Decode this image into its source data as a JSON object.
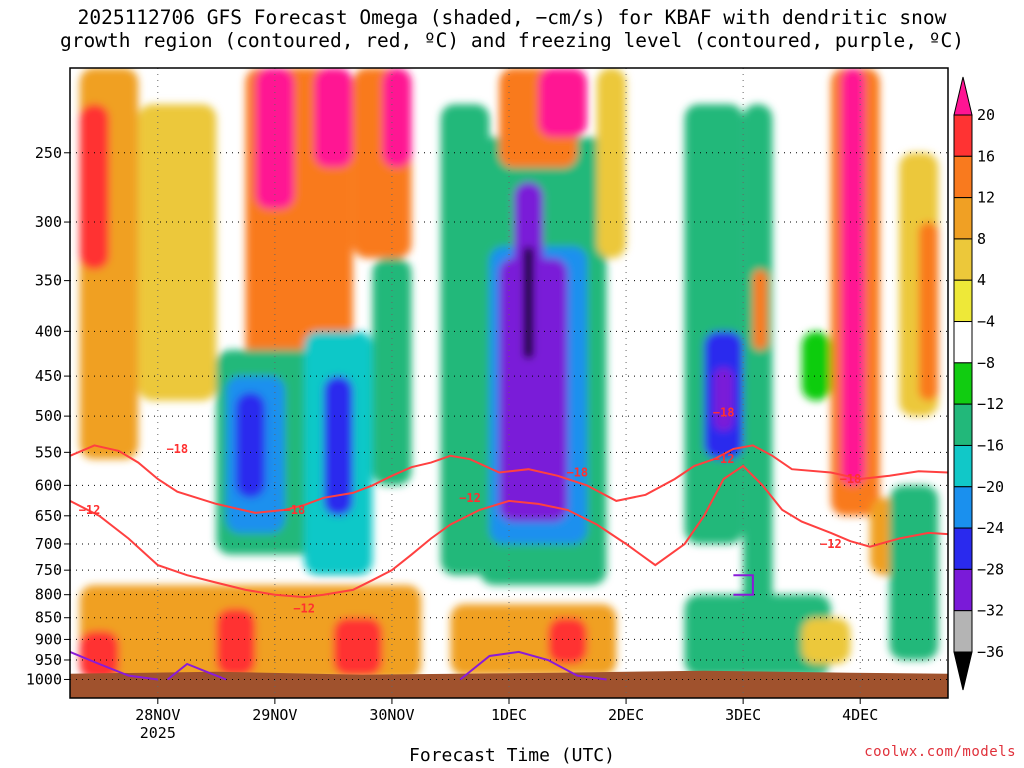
{
  "title_line1": "2025112706 GFS Forecast Omega (shaded, −cm/s) for KBAF with dendritic snow",
  "title_line2": "growth region (contoured, red, ºC) and freezing level (contoured, purple, ºC)",
  "credit": "coolwx.com/models",
  "chart_data": {
    "type": "heatmap",
    "title": "2025112706 GFS Forecast Omega (shaded, −cm/s) for KBAF with dendritic snow growth region (contoured, red, ºC) and freezing level (contoured, purple, ºC)",
    "xlabel": "Forecast Time (UTC)",
    "ylabel": "",
    "x_ticks": [
      {
        "label": "28NOV",
        "sublabel": "2025",
        "hour": 18
      },
      {
        "label": "29NOV",
        "hour": 42
      },
      {
        "label": "30NOV",
        "hour": 66
      },
      {
        "label": "1DEC",
        "hour": 90
      },
      {
        "label": "2DEC",
        "hour": 114
      },
      {
        "label": "3DEC",
        "hour": 138
      },
      {
        "label": "4DEC",
        "hour": 162
      }
    ],
    "xlim_hours": [
      0,
      180
    ],
    "y_axis": "pressure (hPa), log scale",
    "y_ticks": [
      250,
      300,
      350,
      400,
      450,
      500,
      550,
      600,
      650,
      700,
      750,
      800,
      850,
      900,
      950,
      1000
    ],
    "ylim": [
      200,
      1050
    ],
    "grid": true,
    "colorbar": {
      "labels": [
        "20",
        "16",
        "12",
        "8",
        "4",
        "−4",
        "−8",
        "−12",
        "−16",
        "−20",
        "−24",
        "−28",
        "−32",
        "−36"
      ],
      "colors": [
        "#ff1493",
        "#ff3333",
        "#f97a1e",
        "#f0a024",
        "#ecc83a",
        "#eee838",
        "#ffffff",
        "#11cc11",
        "#22b87a",
        "#11c8c8",
        "#1a90ee",
        "#2a2aee",
        "#7a1ad8",
        "#b4b4b4",
        "#000000"
      ]
    },
    "omega_regions": [
      {
        "t0": 2,
        "t1": 14,
        "p0": 200,
        "p1": 560,
        "value": 10
      },
      {
        "t0": 2,
        "t1": 8,
        "p0": 220,
        "p1": 340,
        "value": 16
      },
      {
        "t0": 14,
        "t1": 30,
        "p0": 220,
        "p1": 480,
        "value": 6
      },
      {
        "t0": 36,
        "t1": 58,
        "p0": 200,
        "p1": 470,
        "value": 12
      },
      {
        "t0": 38,
        "t1": 46,
        "p0": 200,
        "p1": 290,
        "value": 20
      },
      {
        "t0": 50,
        "t1": 58,
        "p0": 200,
        "p1": 260,
        "value": 20
      },
      {
        "t0": 58,
        "t1": 70,
        "p0": 200,
        "p1": 330,
        "value": 14
      },
      {
        "t0": 64,
        "t1": 70,
        "p0": 200,
        "p1": 260,
        "value": 20
      },
      {
        "t0": 30,
        "t1": 60,
        "p0": 420,
        "p1": 720,
        "value": -8
      },
      {
        "t0": 32,
        "t1": 44,
        "p0": 450,
        "p1": 680,
        "value": -16
      },
      {
        "t0": 34,
        "t1": 40,
        "p0": 470,
        "p1": 620,
        "value": -22
      },
      {
        "t0": 48,
        "t1": 62,
        "p0": 400,
        "p1": 760,
        "value": -12
      },
      {
        "t0": 52,
        "t1": 58,
        "p0": 450,
        "p1": 650,
        "value": -22
      },
      {
        "t0": 62,
        "t1": 70,
        "p0": 330,
        "p1": 600,
        "value": -10
      },
      {
        "t0": 76,
        "t1": 86,
        "p0": 220,
        "p1": 760,
        "value": -8
      },
      {
        "t0": 84,
        "t1": 110,
        "p0": 240,
        "p1": 780,
        "value": -10
      },
      {
        "t0": 86,
        "t1": 106,
        "p0": 320,
        "p1": 700,
        "value": -18
      },
      {
        "t0": 88,
        "t1": 102,
        "p0": 330,
        "p1": 660,
        "value": -24
      },
      {
        "t0": 91,
        "t1": 97,
        "p0": 270,
        "p1": 470,
        "value": -30
      },
      {
        "t0": 93,
        "t1": 95,
        "p0": 320,
        "p1": 430,
        "value": -40
      },
      {
        "t0": 88,
        "t1": 104,
        "p0": 200,
        "p1": 260,
        "value": 14
      },
      {
        "t0": 96,
        "t1": 106,
        "p0": 200,
        "p1": 240,
        "value": 20
      },
      {
        "t0": 108,
        "t1": 114,
        "p0": 200,
        "p1": 330,
        "value": 6
      },
      {
        "t0": 126,
        "t1": 138,
        "p0": 220,
        "p1": 700,
        "value": -8
      },
      {
        "t0": 130,
        "t1": 138,
        "p0": 400,
        "p1": 560,
        "value": -20
      },
      {
        "t0": 132,
        "t1": 136,
        "p0": 440,
        "p1": 520,
        "value": -26
      },
      {
        "t0": 138,
        "t1": 144,
        "p0": 220,
        "p1": 900,
        "value": -10
      },
      {
        "t0": 140,
        "t1": 143,
        "p0": 340,
        "p1": 420,
        "value": 12
      },
      {
        "t0": 150,
        "t1": 156,
        "p0": 400,
        "p1": 480,
        "value": -6
      },
      {
        "t0": 156,
        "t1": 166,
        "p0": 200,
        "p1": 650,
        "value": 12
      },
      {
        "t0": 158,
        "t1": 163,
        "p0": 200,
        "p1": 600,
        "value": 20
      },
      {
        "t0": 170,
        "t1": 178,
        "p0": 250,
        "p1": 500,
        "value": 6
      },
      {
        "t0": 174,
        "t1": 178,
        "p0": 300,
        "p1": 480,
        "value": 12
      },
      {
        "t0": 2,
        "t1": 72,
        "p0": 780,
        "p1": 1000,
        "value": 8
      },
      {
        "t0": 2,
        "t1": 10,
        "p0": 880,
        "p1": 1000,
        "value": 16
      },
      {
        "t0": 30,
        "t1": 38,
        "p0": 830,
        "p1": 990,
        "value": 16
      },
      {
        "t0": 54,
        "t1": 64,
        "p0": 850,
        "p1": 990,
        "value": 16
      },
      {
        "t0": 78,
        "t1": 112,
        "p0": 820,
        "p1": 990,
        "value": 8
      },
      {
        "t0": 98,
        "t1": 106,
        "p0": 850,
        "p1": 960,
        "value": 16
      },
      {
        "t0": 126,
        "t1": 156,
        "p0": 800,
        "p1": 990,
        "value": -10
      },
      {
        "t0": 150,
        "t1": 160,
        "p0": 850,
        "p1": 960,
        "value": 6
      },
      {
        "t0": 164,
        "t1": 172,
        "p0": 620,
        "p1": 760,
        "value": 8
      },
      {
        "t0": 168,
        "t1": 178,
        "p0": 600,
        "p1": 950,
        "value": -10
      }
    ],
    "contours": [
      {
        "name": "−18",
        "color": "#ff4040",
        "points": [
          [
            0,
            555
          ],
          [
            5,
            540
          ],
          [
            10,
            548
          ],
          [
            14,
            565
          ],
          [
            18,
            590
          ],
          [
            22,
            610
          ],
          [
            30,
            630
          ],
          [
            38,
            645
          ],
          [
            44,
            640
          ],
          [
            48,
            632
          ],
          [
            52,
            620
          ],
          [
            58,
            612
          ],
          [
            62,
            600
          ],
          [
            66,
            585
          ],
          [
            70,
            572
          ],
          [
            74,
            565
          ],
          [
            78,
            555
          ],
          [
            82,
            560
          ],
          [
            88,
            580
          ],
          [
            94,
            575
          ],
          [
            100,
            585
          ],
          [
            106,
            600
          ],
          [
            112,
            625
          ],
          [
            118,
            615
          ],
          [
            124,
            590
          ],
          [
            128,
            570
          ],
          [
            132,
            560
          ],
          [
            136,
            545
          ],
          [
            140,
            540
          ],
          [
            144,
            555
          ],
          [
            148,
            575
          ],
          [
            156,
            580
          ],
          [
            162,
            590
          ],
          [
            168,
            585
          ],
          [
            174,
            578
          ],
          [
            180,
            580
          ]
        ]
      },
      {
        "name": "−12",
        "color": "#ff4040",
        "points": [
          [
            0,
            625
          ],
          [
            6,
            650
          ],
          [
            12,
            690
          ],
          [
            18,
            740
          ],
          [
            24,
            760
          ],
          [
            30,
            775
          ],
          [
            36,
            790
          ],
          [
            42,
            800
          ],
          [
            48,
            805
          ],
          [
            52,
            800
          ],
          [
            58,
            790
          ],
          [
            62,
            770
          ],
          [
            66,
            750
          ],
          [
            70,
            720
          ],
          [
            74,
            690
          ],
          [
            78,
            665
          ],
          [
            84,
            640
          ],
          [
            90,
            625
          ],
          [
            96,
            630
          ],
          [
            102,
            640
          ],
          [
            108,
            665
          ],
          [
            114,
            700
          ],
          [
            120,
            740
          ],
          [
            126,
            700
          ],
          [
            130,
            650
          ],
          [
            134,
            590
          ],
          [
            138,
            570
          ],
          [
            142,
            600
          ],
          [
            146,
            640
          ],
          [
            150,
            660
          ],
          [
            156,
            680
          ],
          [
            160,
            695
          ],
          [
            164,
            705
          ],
          [
            170,
            690
          ],
          [
            176,
            680
          ],
          [
            180,
            682
          ]
        ]
      },
      {
        "name": "0",
        "color": "#8a1ad8",
        "points": [
          [
            0,
            930
          ],
          [
            6,
            960
          ],
          [
            12,
            990
          ],
          [
            18,
            1000
          ]
        ]
      },
      {
        "name": "0b",
        "color": "#8a1ad8",
        "points": [
          [
            20,
            1000
          ],
          [
            24,
            960
          ],
          [
            28,
            980
          ],
          [
            32,
            1000
          ]
        ]
      },
      {
        "name": "0c",
        "color": "#8a1ad8",
        "points": [
          [
            80,
            1000
          ],
          [
            86,
            940
          ],
          [
            92,
            930
          ],
          [
            98,
            950
          ],
          [
            104,
            990
          ],
          [
            110,
            1000
          ]
        ]
      },
      {
        "name": "0d",
        "color": "#8a1ad8",
        "points": [
          [
            136,
            760
          ],
          [
            140,
            760
          ],
          [
            140,
            800
          ],
          [
            136,
            800
          ]
        ]
      }
    ],
    "contour_labels": [
      {
        "text": "−18",
        "hour": 22,
        "p": 545
      },
      {
        "text": "−12",
        "hour": 4,
        "p": 640
      },
      {
        "text": "−18",
        "hour": 46,
        "p": 640
      },
      {
        "text": "−12",
        "hour": 48,
        "p": 830
      },
      {
        "text": "−12",
        "hour": 82,
        "p": 620
      },
      {
        "text": "−18",
        "hour": 104,
        "p": 580
      },
      {
        "text": "−18",
        "hour": 134,
        "p": 495
      },
      {
        "text": "−12",
        "hour": 134,
        "p": 560
      },
      {
        "text": "−18",
        "hour": 160,
        "p": 590
      },
      {
        "text": "−12",
        "hour": 156,
        "p": 700
      }
    ],
    "terrain_top_hPa": 985,
    "terrain_color": "#a0522d"
  }
}
